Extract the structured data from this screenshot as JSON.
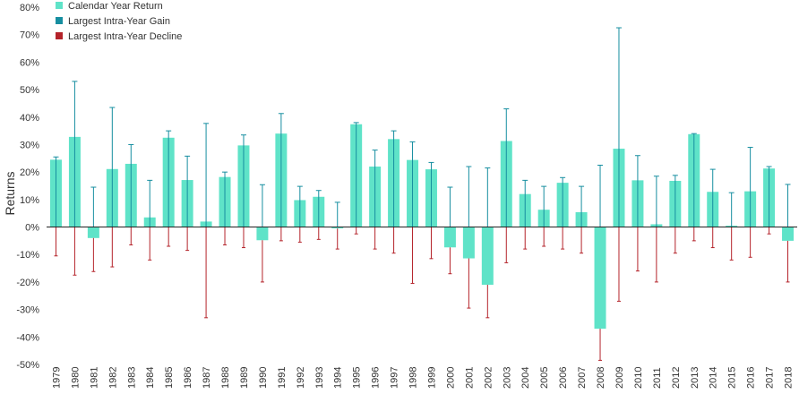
{
  "chart_data": {
    "type": "bar",
    "ylabel": "Returns",
    "ylim": [
      -50,
      80
    ],
    "yticks": [
      80,
      70,
      60,
      50,
      40,
      30,
      20,
      10,
      0,
      -10,
      -20,
      -30,
      -40,
      -50
    ],
    "ytick_labels": [
      "80%",
      "70%",
      "60%",
      "50%",
      "40%",
      "30%",
      "20%",
      "10%",
      "0%",
      "-10%",
      "-20%",
      "-30%",
      "-40%",
      "-50%"
    ],
    "legend_position": "top-left",
    "categories": [
      "1979",
      "1980",
      "1981",
      "1982",
      "1983",
      "1984",
      "1985",
      "1986",
      "1987",
      "1988",
      "1989",
      "1990",
      "1991",
      "1992",
      "1993",
      "1994",
      "1995",
      "1996",
      "1997",
      "1998",
      "1999",
      "2000",
      "2001",
      "2002",
      "2003",
      "2004",
      "2005",
      "2006",
      "2007",
      "2008",
      "2009",
      "2010",
      "2011",
      "2012",
      "2013",
      "2014",
      "2015",
      "2016",
      "2017",
      "2018"
    ],
    "series": [
      {
        "name": "Calendar Year Return",
        "color": "#5fe3c8",
        "values": [
          24.5,
          32.8,
          -4.0,
          21.1,
          23.0,
          3.5,
          32.5,
          17.1,
          2.0,
          18.2,
          29.7,
          -4.8,
          34.0,
          9.8,
          11.0,
          -0.5,
          37.4,
          22.0,
          32.0,
          24.4,
          21.0,
          -7.4,
          -11.4,
          -21.0,
          31.3,
          12.0,
          6.3,
          16.1,
          5.4,
          -37.0,
          28.5,
          17.0,
          1.0,
          16.8,
          33.8,
          12.8,
          0.5,
          13.0,
          21.3,
          -5.0
        ]
      },
      {
        "name": "Largest Intra-Year Gain",
        "color": "#168ea0",
        "values": [
          25.5,
          53.0,
          14.5,
          43.5,
          30.0,
          17.0,
          35.0,
          25.8,
          37.7,
          20.0,
          33.5,
          15.4,
          41.3,
          14.8,
          13.3,
          9.0,
          38.0,
          28.0,
          35.0,
          31.0,
          23.5,
          14.5,
          22.0,
          21.5,
          43.0,
          17.0,
          14.8,
          18.0,
          14.8,
          22.5,
          72.5,
          26.0,
          18.5,
          18.8,
          34.0,
          21.0,
          12.5,
          29.0,
          22.0,
          15.5
        ]
      },
      {
        "name": "Largest Intra-Year Decline",
        "color": "#b4232a",
        "values": [
          -10.5,
          -17.5,
          -16.2,
          -14.5,
          -6.5,
          -12.0,
          -7.0,
          -8.5,
          -33.0,
          -6.5,
          -7.5,
          -20.0,
          -5.0,
          -5.5,
          -4.5,
          -8.0,
          -2.5,
          -8.0,
          -9.5,
          -20.5,
          -11.5,
          -17.0,
          -29.5,
          -33.0,
          -13.0,
          -8.0,
          -7.0,
          -8.0,
          -9.5,
          -48.5,
          -27.0,
          -16.0,
          -20.0,
          -9.5,
          -5.0,
          -7.5,
          -12.0,
          -11.0,
          -2.5,
          -20.0
        ]
      }
    ]
  }
}
